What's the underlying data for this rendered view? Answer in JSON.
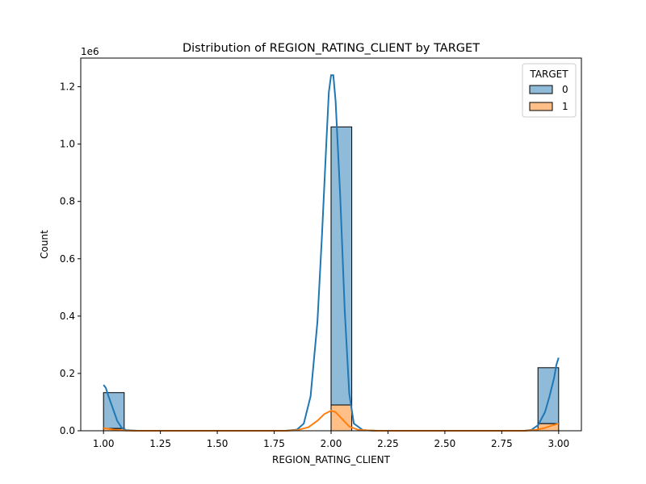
{
  "chart_data": {
    "type": "histogram",
    "title": "Distribution of REGION_RATING_CLIENT by TARGET",
    "xlabel": "REGION_RATING_CLIENT",
    "ylabel": "Count",
    "y_scale_label": "1e6",
    "xlim": [
      0.9,
      3.1
    ],
    "ylim": [
      0,
      1300000
    ],
    "x_ticks": [
      1.0,
      1.25,
      1.5,
      1.75,
      2.0,
      2.25,
      2.5,
      2.75,
      3.0
    ],
    "x_tick_labels": [
      "1.00",
      "1.25",
      "1.50",
      "1.75",
      "2.00",
      "2.25",
      "2.50",
      "2.75",
      "3.00"
    ],
    "y_ticks": [
      0,
      200000,
      400000,
      600000,
      800000,
      1000000,
      1200000
    ],
    "y_tick_labels": [
      "0.0",
      "0.2",
      "0.4",
      "0.6",
      "0.8",
      "1.0",
      "1.2"
    ],
    "legend": {
      "title": "TARGET",
      "position": "top-right"
    },
    "stacked": true,
    "bins": [
      {
        "x_start": 1.0,
        "x_end": 1.0909
      },
      {
        "x_start": 1.9091,
        "x_end": 2.0
      },
      {
        "x_start": 2.0,
        "x_end": 2.0909
      },
      {
        "x_start": 2.9091,
        "x_end": 3.0
      }
    ],
    "series": [
      {
        "name": "0",
        "color": "#1f77b4",
        "fill_alpha": 0.5,
        "values": [
          125000,
          0,
          970000,
          195000
        ],
        "kde": [
          [
            1.0,
            160000
          ],
          [
            1.01,
            150000
          ],
          [
            1.02,
            125000
          ],
          [
            1.04,
            80000
          ],
          [
            1.06,
            35000
          ],
          [
            1.08,
            10000
          ],
          [
            1.1,
            2000
          ],
          [
            1.15,
            0
          ],
          [
            1.8,
            0
          ],
          [
            1.85,
            4000
          ],
          [
            1.88,
            25000
          ],
          [
            1.91,
            120000
          ],
          [
            1.94,
            380000
          ],
          [
            1.96,
            680000
          ],
          [
            1.98,
            1020000
          ],
          [
            1.99,
            1180000
          ],
          [
            2.0,
            1240000
          ],
          [
            2.01,
            1240000
          ],
          [
            2.02,
            1150000
          ],
          [
            2.04,
            820000
          ],
          [
            2.06,
            420000
          ],
          [
            2.08,
            130000
          ],
          [
            2.1,
            25000
          ],
          [
            2.14,
            2000
          ],
          [
            2.2,
            0
          ],
          [
            2.85,
            0
          ],
          [
            2.88,
            3000
          ],
          [
            2.91,
            20000
          ],
          [
            2.94,
            65000
          ],
          [
            2.96,
            120000
          ],
          [
            2.98,
            185000
          ],
          [
            2.99,
            230000
          ],
          [
            3.0,
            255000
          ]
        ]
      },
      {
        "name": "1",
        "color": "#ff7f0e",
        "fill_alpha": 0.5,
        "values": [
          8000,
          0,
          90000,
          25000
        ],
        "kde": [
          [
            1.0,
            9000
          ],
          [
            1.02,
            7000
          ],
          [
            1.05,
            3000
          ],
          [
            1.1,
            500
          ],
          [
            1.15,
            0
          ],
          [
            1.8,
            0
          ],
          [
            1.85,
            2000
          ],
          [
            1.9,
            12000
          ],
          [
            1.94,
            35000
          ],
          [
            1.97,
            58000
          ],
          [
            2.0,
            70000
          ],
          [
            2.02,
            65000
          ],
          [
            2.05,
            40000
          ],
          [
            2.08,
            15000
          ],
          [
            2.12,
            3000
          ],
          [
            2.2,
            0
          ],
          [
            2.85,
            0
          ],
          [
            2.9,
            3000
          ],
          [
            2.94,
            10000
          ],
          [
            2.97,
            18000
          ],
          [
            3.0,
            25000
          ]
        ]
      }
    ]
  }
}
